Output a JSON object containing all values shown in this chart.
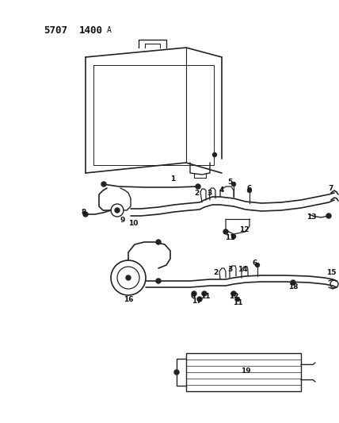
{
  "title_part1": "5707",
  "title_part2": "1400",
  "title_suffix": "A",
  "bg_color": "#ffffff",
  "line_color": "#222222",
  "text_color": "#111111",
  "title_fontsize": 9,
  "label_fontsize": 6.5,
  "fig_width": 4.28,
  "fig_height": 5.33,
  "dpi": 100
}
